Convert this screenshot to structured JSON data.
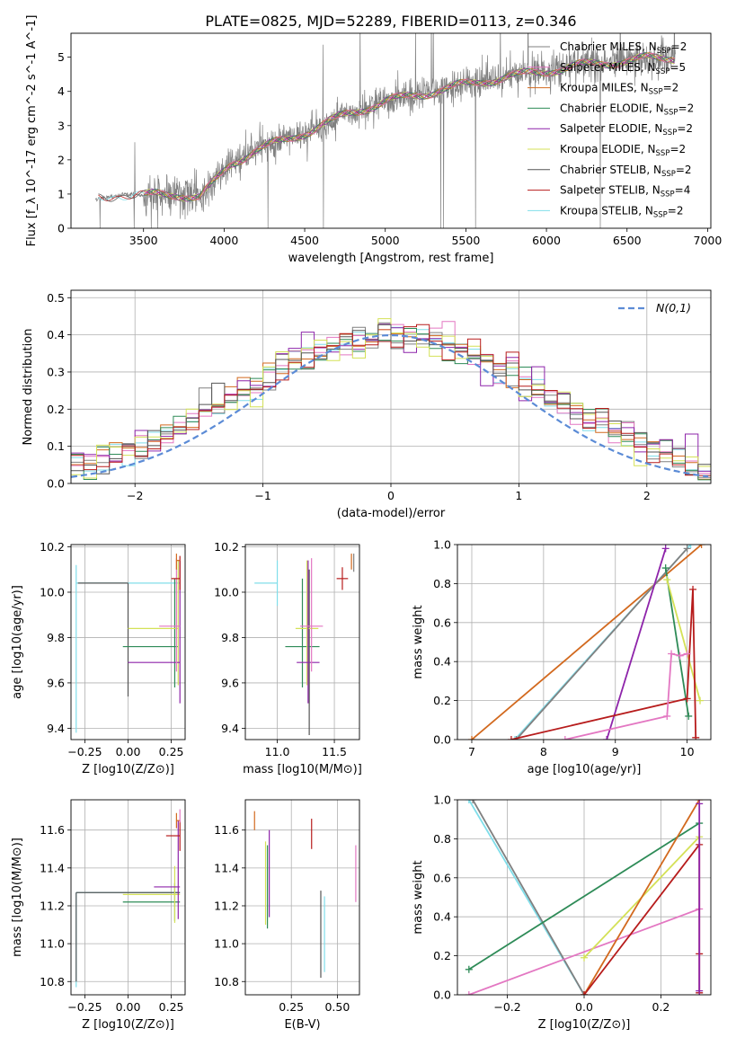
{
  "figure": {
    "title": "PLATE=0825, MJD=52289, FIBERID=0113, z=0.346"
  },
  "series_styles": [
    {
      "name": "Chabrier MILES",
      "nssp": "2",
      "color": "#808080"
    },
    {
      "name": "Salpeter MILES",
      "nssp": "5",
      "color": "#e377c2"
    },
    {
      "name": "Kroupa MILES",
      "nssp": "2",
      "color": "#d2691e"
    },
    {
      "name": "Chabrier ELODIE",
      "nssp": "2",
      "color": "#2e8b57"
    },
    {
      "name": "Salpeter ELODIE",
      "nssp": "2",
      "color": "#8e24aa"
    },
    {
      "name": "Kroupa ELODIE",
      "nssp": "2",
      "color": "#d4e157"
    },
    {
      "name": "Chabrier STELIB",
      "nssp": "2",
      "color": "#555555"
    },
    {
      "name": "Salpeter STELIB",
      "nssp": "4",
      "color": "#b71c1c"
    },
    {
      "name": "Kroupa STELIB",
      "nssp": "2",
      "color": "#80deea"
    }
  ],
  "chart_data": [
    {
      "id": "spectrum",
      "type": "line",
      "xlabel": "wavelength [Angstrom, rest frame]",
      "ylabel": "Flux [f_λ 10^-17 erg cm^-2 s^-1 A^-1]",
      "xlim": [
        3050,
        7020
      ],
      "ylim": [
        0,
        5.7
      ],
      "xticks": [
        3500,
        4000,
        4500,
        5000,
        5500,
        6000,
        6500,
        7000
      ],
      "yticks": [
        0,
        1,
        2,
        3,
        4,
        5
      ],
      "grid": false,
      "legend": "top-right",
      "data_color": "#808080",
      "continuum_x": [
        3200,
        3400,
        3500,
        3700,
        3850,
        3950,
        4050,
        4200,
        4400,
        4600,
        4800,
        5000,
        5200,
        5400,
        5600,
        5800,
        6000,
        6200,
        6400,
        6600,
        6800
      ],
      "continuum_y": [
        0.85,
        1.0,
        0.95,
        1.0,
        0.9,
        1.4,
        1.9,
        2.3,
        2.6,
        3.0,
        3.4,
        3.7,
        3.9,
        4.1,
        4.3,
        4.45,
        4.6,
        4.75,
        4.85,
        4.95,
        5.0
      ],
      "wave_range": [
        3200,
        6800
      ]
    },
    {
      "id": "residuals",
      "type": "line",
      "xlabel": "(data-model)/error",
      "ylabel": "Normed distribution",
      "xlim": [
        -2.5,
        2.5
      ],
      "ylim": [
        0,
        0.52
      ],
      "xticks": [
        -2,
        -1,
        0,
        1,
        2
      ],
      "yticks": [
        0.0,
        0.1,
        0.2,
        0.3,
        0.4,
        0.5
      ],
      "grid": true,
      "legend": "top-right",
      "legend_label": "N(0,1)",
      "bin_width": 0.1,
      "gauss_sigma": 1.0
    },
    {
      "id": "age_vs_Z",
      "type": "scatter",
      "xlabel": "Z [log10(Z/Z⊙)]",
      "ylabel": "age [log10(age/yr)]",
      "xlim": [
        -0.33,
        0.33
      ],
      "ylim": [
        9.35,
        10.21
      ],
      "xticks": [
        -0.25,
        0.0,
        0.25
      ],
      "yticks": [
        9.4,
        9.6,
        9.8,
        10.0,
        10.2
      ],
      "grid": true,
      "points": [
        {
          "s": 8,
          "x": -0.3,
          "xerr": [
            0.0,
            0.6
          ],
          "y": 10.04,
          "yerr": [
            0.66,
            0.08
          ]
        },
        {
          "s": 6,
          "x": 0.0,
          "xerr": [
            0.29,
            0.0
          ],
          "y": 10.04,
          "yerr": [
            0.5,
            0.0
          ]
        },
        {
          "s": 3,
          "x": 0.27,
          "xerr": [
            0.3,
            0.02
          ],
          "y": 9.76,
          "yerr": [
            0.18,
            0.3
          ]
        },
        {
          "s": 5,
          "x": 0.29,
          "xerr": [
            0.29,
            0.0
          ],
          "y": 9.84,
          "yerr": [
            0.25,
            0.3
          ]
        },
        {
          "s": 4,
          "x": 0.3,
          "xerr": [
            0.3,
            0.0
          ],
          "y": 9.69,
          "yerr": [
            0.18,
            0.45
          ]
        },
        {
          "s": 1,
          "x": 0.28,
          "xerr": [
            0.1,
            0.02
          ],
          "y": 9.85,
          "yerr": [
            0.2,
            0.3
          ]
        },
        {
          "s": 7,
          "x": 0.3,
          "xerr": [
            0.05,
            0.0
          ],
          "y": 10.06,
          "yerr": [
            0.05,
            0.1
          ]
        },
        {
          "s": 2,
          "x": 0.28,
          "xerr": [
            0.0,
            0.02
          ],
          "y": 10.14,
          "yerr": [
            0.04,
            0.03
          ]
        }
      ]
    },
    {
      "id": "age_vs_mass",
      "type": "scatter",
      "xlabel": "mass [log10(M/M⊙)]",
      "ylabel": "",
      "xlim": [
        10.72,
        11.72
      ],
      "ylim": [
        9.35,
        10.21
      ],
      "xticks": [
        11.0,
        11.5
      ],
      "yticks": [
        9.4,
        9.6,
        9.8,
        10.0,
        10.2
      ],
      "grid": true,
      "points": [
        {
          "s": 8,
          "x": 11.0,
          "xerr": [
            0.2,
            0.0
          ],
          "y": 10.04,
          "yerr": [
            0.1,
            0.1
          ]
        },
        {
          "s": 6,
          "x": 11.28,
          "xerr": [
            0.0,
            0.0
          ],
          "y": 9.7,
          "yerr": [
            0.33,
            0.4
          ]
        },
        {
          "s": 3,
          "x": 11.22,
          "xerr": [
            0.15,
            0.15
          ],
          "y": 9.76,
          "yerr": [
            0.18,
            0.3
          ]
        },
        {
          "s": 5,
          "x": 11.26,
          "xerr": [
            0.1,
            0.1
          ],
          "y": 9.84,
          "yerr": [
            0.25,
            0.3
          ]
        },
        {
          "s": 4,
          "x": 11.27,
          "xerr": [
            0.1,
            0.1
          ],
          "y": 9.69,
          "yerr": [
            0.18,
            0.45
          ]
        },
        {
          "s": 1,
          "x": 11.3,
          "xerr": [
            0.1,
            0.1
          ],
          "y": 9.85,
          "yerr": [
            0.2,
            0.3
          ]
        },
        {
          "s": 7,
          "x": 11.57,
          "xerr": [
            0.05,
            0.05
          ],
          "y": 10.06,
          "yerr": [
            0.05,
            0.05
          ]
        },
        {
          "s": 2,
          "x": 11.65,
          "xerr": [
            0.0,
            0.0
          ],
          "y": 10.14,
          "yerr": [
            0.04,
            0.03
          ]
        },
        {
          "s": 0,
          "x": 11.67,
          "xerr": [
            0.0,
            0.0
          ],
          "y": 10.13,
          "yerr": [
            0.04,
            0.04
          ]
        }
      ]
    },
    {
      "id": "massweight_vs_age",
      "type": "line",
      "xlabel": "age [log10(age/yr)]",
      "ylabel": "mass weight",
      "xlim": [
        6.8,
        10.33
      ],
      "ylim": [
        0,
        1.0
      ],
      "xticks": [
        7,
        8,
        9,
        10
      ],
      "yticks": [
        0.0,
        0.2,
        0.4,
        0.6,
        0.8,
        1.0
      ],
      "grid": true,
      "series": [
        {
          "s": 2,
          "x": [
            7.0,
            10.2
          ],
          "y": [
            0.0,
            1.0
          ]
        },
        {
          "s": 8,
          "x": [
            7.6,
            10.05
          ],
          "y": [
            0.0,
            1.0
          ]
        },
        {
          "s": 0,
          "x": [
            7.62,
            10.0
          ],
          "y": [
            0.0,
            0.98
          ]
        },
        {
          "s": 4,
          "x": [
            8.88,
            9.7
          ],
          "y": [
            0.0,
            0.98
          ]
        },
        {
          "s": 3,
          "x": [
            9.7,
            10.02
          ],
          "y": [
            0.88,
            0.12
          ]
        },
        {
          "s": 5,
          "x": [
            9.72,
            10.18
          ],
          "y": [
            0.82,
            0.2
          ]
        },
        {
          "s": 7,
          "x": [
            7.55,
            10.0,
            10.08,
            10.12
          ],
          "y": [
            0.0,
            0.21,
            0.77,
            0.01
          ]
        },
        {
          "s": 1,
          "x": [
            8.3,
            9.72,
            9.78,
            9.9,
            10.0
          ],
          "y": [
            0.0,
            0.12,
            0.44,
            0.43,
            0.44
          ]
        }
      ]
    },
    {
      "id": "mass_vs_Z",
      "type": "scatter",
      "xlabel": "Z [log10(Z/Z⊙)]",
      "ylabel": "mass [log10(M/M⊙)]",
      "xlim": [
        -0.33,
        0.33
      ],
      "ylim": [
        10.73,
        11.76
      ],
      "xticks": [
        -0.25,
        0.0,
        0.25
      ],
      "yticks": [
        10.8,
        11.0,
        11.2,
        11.4,
        11.6
      ],
      "grid": true,
      "points": [
        {
          "s": 8,
          "x": -0.3,
          "xerr": [
            0.0,
            0.6
          ],
          "y": 11.27,
          "yerr": [
            0.5,
            0.0
          ]
        },
        {
          "s": 6,
          "x": -0.3,
          "xerr": [
            0.0,
            0.6
          ],
          "y": 11.27,
          "yerr": [
            0.47,
            0.0
          ]
        },
        {
          "s": 3,
          "x": 0.27,
          "xerr": [
            0.3,
            0.03
          ],
          "y": 11.22,
          "yerr": [
            0.1,
            0.1
          ]
        },
        {
          "s": 5,
          "x": 0.27,
          "xerr": [
            0.3,
            0.03
          ],
          "y": 11.26,
          "yerr": [
            0.15,
            0.15
          ]
        },
        {
          "s": 4,
          "x": 0.29,
          "xerr": [
            0.14,
            0.01
          ],
          "y": 11.3,
          "yerr": [
            0.17,
            0.35
          ]
        },
        {
          "s": 7,
          "x": 0.3,
          "xerr": [
            0.08,
            0.0
          ],
          "y": 11.57,
          "yerr": [
            0.08,
            0.08
          ]
        },
        {
          "s": 2,
          "x": 0.28,
          "xerr": [
            0.0,
            0.02
          ],
          "y": 11.65,
          "yerr": [
            0.04,
            0.04
          ]
        },
        {
          "s": 1,
          "x": 0.3,
          "xerr": [
            0.0,
            0.0
          ],
          "y": 11.68,
          "yerr": [
            0.04,
            0.03
          ]
        }
      ]
    },
    {
      "id": "mass_vs_EBV",
      "type": "scatter",
      "xlabel": "E(B-V)",
      "ylabel": "",
      "xlim": [
        0.0,
        0.62
      ],
      "ylim": [
        10.73,
        11.76
      ],
      "xticks": [
        0.25,
        0.5
      ],
      "yticks": [
        10.8,
        11.0,
        11.2,
        11.4,
        11.6
      ],
      "grid": true,
      "points": [
        {
          "s": 2,
          "x": 0.05,
          "xerr": [
            0.0,
            0.0
          ],
          "y": 11.65,
          "yerr": [
            0.05,
            0.05
          ]
        },
        {
          "s": 5,
          "x": 0.11,
          "xerr": [
            0.0,
            0.0
          ],
          "y": 11.32,
          "yerr": [
            0.22,
            0.22
          ]
        },
        {
          "s": 3,
          "x": 0.12,
          "xerr": [
            0.0,
            0.0
          ],
          "y": 11.3,
          "yerr": [
            0.22,
            0.22
          ]
        },
        {
          "s": 4,
          "x": 0.13,
          "xerr": [
            0.0,
            0.0
          ],
          "y": 11.37,
          "yerr": [
            0.23,
            0.23
          ]
        },
        {
          "s": 7,
          "x": 0.36,
          "xerr": [
            0.0,
            0.0
          ],
          "y": 11.58,
          "yerr": [
            0.08,
            0.08
          ]
        },
        {
          "s": 6,
          "x": 0.41,
          "xerr": [
            0.0,
            0.0
          ],
          "y": 11.05,
          "yerr": [
            0.23,
            0.23
          ]
        },
        {
          "s": 8,
          "x": 0.43,
          "xerr": [
            0.0,
            0.0
          ],
          "y": 11.05,
          "yerr": [
            0.2,
            0.2
          ]
        },
        {
          "s": 1,
          "x": 0.6,
          "xerr": [
            0.0,
            0.0
          ],
          "y": 11.37,
          "yerr": [
            0.15,
            0.15
          ]
        }
      ]
    },
    {
      "id": "massweight_vs_Z",
      "type": "line",
      "xlabel": "Z [log10(Z/Z⊙)]",
      "ylabel": "mass weight",
      "xlim": [
        -0.33,
        0.33
      ],
      "ylim": [
        0,
        1.0
      ],
      "xticks": [
        -0.2,
        0.0,
        0.2
      ],
      "yticks": [
        0.0,
        0.2,
        0.4,
        0.6,
        0.8,
        1.0
      ],
      "grid": true,
      "series": [
        {
          "s": 8,
          "x": [
            -0.3,
            0.0
          ],
          "y": [
            1.0,
            0.0
          ]
        },
        {
          "s": 0,
          "x": [
            -0.29,
            0.0
          ],
          "y": [
            1.0,
            0.0
          ]
        },
        {
          "s": 3,
          "x": [
            -0.3,
            0.3
          ],
          "y": [
            0.13,
            0.88
          ]
        },
        {
          "s": 1,
          "x": [
            -0.3,
            0.3
          ],
          "y": [
            0.0,
            0.44
          ]
        },
        {
          "s": 5,
          "x": [
            0.0,
            0.3
          ],
          "y": [
            0.19,
            0.81
          ]
        },
        {
          "s": 2,
          "x": [
            0.0,
            0.3
          ],
          "y": [
            0.0,
            1.0
          ]
        },
        {
          "s": 7,
          "x": [
            0.0,
            0.3,
            0.3,
            0.3
          ],
          "y": [
            0.0,
            0.77,
            0.21,
            0.01
          ]
        },
        {
          "s": 4,
          "x": [
            0.3,
            0.3
          ],
          "y": [
            0.02,
            0.98
          ]
        }
      ]
    }
  ]
}
